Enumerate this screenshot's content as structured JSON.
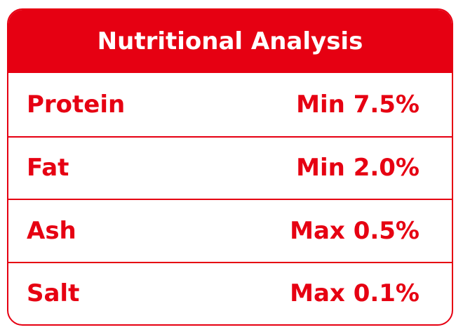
{
  "table": {
    "title": "Nutritional Analysis",
    "rows": [
      [
        "Protein",
        "Min 7.5%"
      ],
      [
        "Fat",
        "Min 2.0%"
      ],
      [
        "Ash",
        "Max 0.5%"
      ],
      [
        "Salt",
        "Max 0.1%"
      ]
    ]
  }
}
